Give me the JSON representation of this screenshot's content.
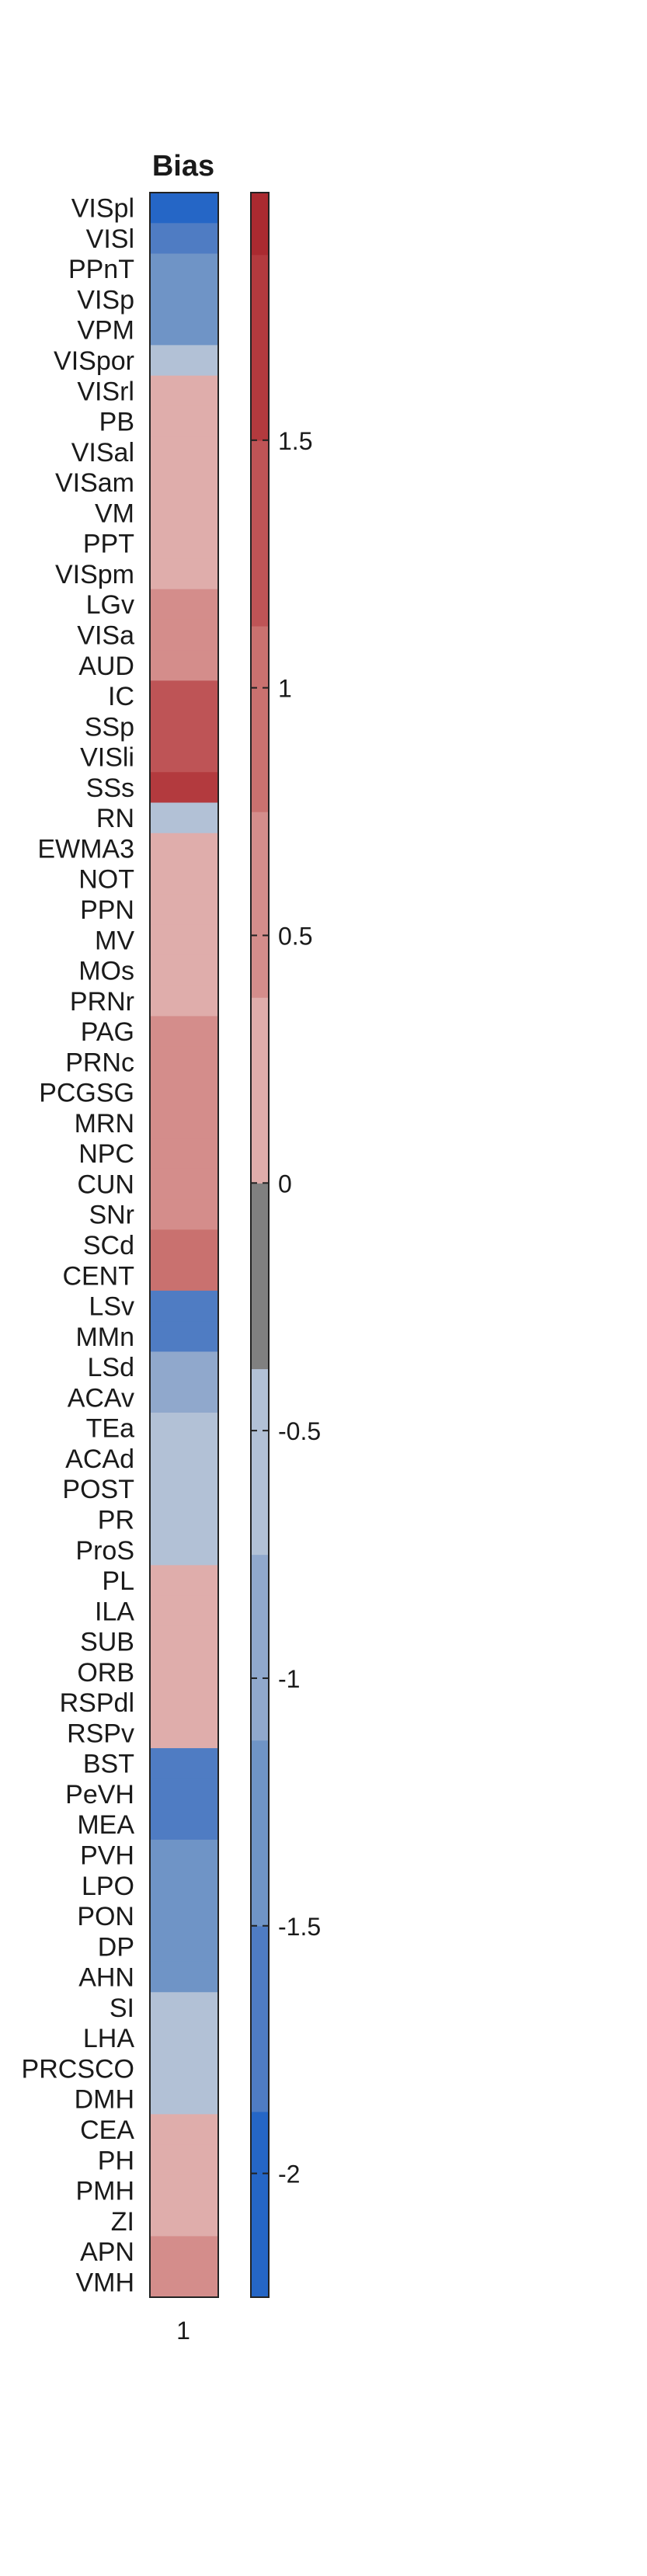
{
  "chart_data": {
    "type": "heatmap",
    "title": "Bias",
    "x_tick_labels": [
      "1"
    ],
    "rows": [
      "VISpl",
      "VISl",
      "PPnT",
      "VISp",
      "VPM",
      "VISpor",
      "VISrl",
      "PB",
      "VISal",
      "VISam",
      "VM",
      "PPT",
      "VISpm",
      "LGv",
      "VISa",
      "AUD",
      "IC",
      "SSp",
      "VISli",
      "SSs",
      "RN",
      "EWMA3",
      "NOT",
      "PPN",
      "MV",
      "MOs",
      "PRNr",
      "PAG",
      "PRNc",
      "PCGSG",
      "MRN",
      "NPC",
      "CUN",
      "SNr",
      "SCd",
      "CENT",
      "LSv",
      "MMn",
      "LSd",
      "ACAv",
      "TEa",
      "ACAd",
      "POST",
      "PR",
      "ProS",
      "PL",
      "ILA",
      "SUB",
      "ORB",
      "RSPdl",
      "RSPv",
      "BST",
      "PeVH",
      "MEA",
      "PVH",
      "LPO",
      "PON",
      "DP",
      "AHN",
      "SI",
      "LHA",
      "PRCSCO",
      "DMH",
      "CEA",
      "PH",
      "PMH",
      "ZI",
      "APN",
      "VMH"
    ],
    "values": [
      -2.125,
      -1.625,
      -1.375,
      -1.375,
      -1.375,
      -0.625,
      0,
      0,
      0,
      0,
      0,
      0,
      0.125,
      0.625,
      0.625,
      0.625,
      1.125,
      1.125,
      1.125,
      1.625,
      -0.625,
      0,
      0,
      0,
      0,
      0,
      0,
      0.625,
      0.625,
      0.625,
      0.625,
      0.625,
      0.625,
      0.625,
      0.875,
      0.875,
      -1.875,
      -1.625,
      -1.125,
      -1.125,
      -0.625,
      -0.625,
      -0.625,
      -0.625,
      -0.625,
      0,
      0,
      0,
      0,
      0,
      0.125,
      -1.875,
      -1.625,
      -1.625,
      -1.375,
      -1.375,
      -1.375,
      -1.375,
      -1.375,
      -0.625,
      -0.625,
      -0.625,
      -0.625,
      0,
      0,
      0,
      0.125,
      0.625,
      0.625
    ],
    "colorbar": {
      "range": [
        -2.25,
        2.0
      ],
      "tick_values": [
        -2,
        -1.5,
        -1,
        -0.5,
        0,
        0.5,
        1,
        1.5
      ],
      "tick_labels": [
        "-2",
        "-1.5",
        "-1",
        "-0.5",
        "0",
        "0.5",
        "1",
        "1.5"
      ],
      "bins": [
        {
          "from": -2.25,
          "to": -1.875,
          "color": "#2566c6"
        },
        {
          "from": -1.875,
          "to": -1.5,
          "color": "#4f7cc3"
        },
        {
          "from": -1.5,
          "to": -1.125,
          "color": "#6f94c6"
        },
        {
          "from": -1.125,
          "to": -0.75,
          "color": "#90a8cc"
        },
        {
          "from": -0.75,
          "to": -0.375,
          "color": "#b2c1d6"
        },
        {
          "from": -0.375,
          "to": 0.0,
          "color": "#808080"
        },
        {
          "from": 0.0,
          "to": 0.375,
          "color": "#dfadab"
        },
        {
          "from": 0.375,
          "to": 0.75,
          "color": "#d48d8b"
        },
        {
          "from": 0.75,
          "to": 1.125,
          "color": "#c9716f"
        },
        {
          "from": 1.125,
          "to": 1.5,
          "color": "#be5456"
        },
        {
          "from": 1.5,
          "to": 1.875,
          "color": "#b33a3e"
        },
        {
          "from": 1.875,
          "to": 2.0,
          "color": "#aa2a30"
        }
      ]
    },
    "grid": false,
    "legend": "colorbar right"
  }
}
